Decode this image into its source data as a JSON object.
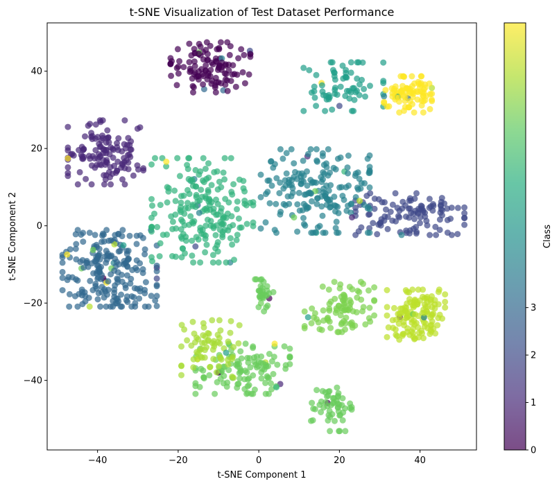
{
  "chart_data": {
    "type": "scatter",
    "title": "t-SNE Visualization of Test Dataset Performance",
    "xlabel": "t-SNE Component 1",
    "ylabel": "t-SNE Component 2",
    "xlim": [
      -52.5,
      54
    ],
    "ylim": [
      -58,
      52.5
    ],
    "xticks": [
      -40,
      -20,
      0,
      20,
      40
    ],
    "yticks": [
      -40,
      -20,
      0,
      20,
      40
    ],
    "grid": false,
    "point_alpha": 0.7,
    "colormap": "viridis",
    "colorbar": {
      "label": "Class",
      "range": [
        0,
        9
      ],
      "ticks": [
        0,
        1,
        2,
        3
      ]
    },
    "clusters": [
      {
        "class": 0,
        "center": [
          -12,
          41
        ],
        "spread": [
          5.5,
          3.6
        ],
        "count": 120
      },
      {
        "class": 1,
        "center": [
          -38,
          19
        ],
        "spread": [
          5.2,
          4.6
        ],
        "count": 130
      },
      {
        "class": 2,
        "center": [
          37.5,
          3
        ],
        "spread": [
          7.5,
          3.0
        ],
        "count": 115
      },
      {
        "class": 3,
        "center": [
          -37,
          -11
        ],
        "spread": [
          6.5,
          5.5
        ],
        "count": 220
      },
      {
        "class": 4,
        "center": [
          14,
          9
        ],
        "spread": [
          7.5,
          6.0
        ],
        "count": 190
      },
      {
        "class": 5,
        "center": [
          21,
          36
        ],
        "spread": [
          5.5,
          3.5
        ],
        "count": 70
      },
      {
        "class": 5.8,
        "center": [
          -14,
          4
        ],
        "spread": [
          7.0,
          7.5
        ],
        "count": 210
      },
      {
        "class": 6.9,
        "center": [
          1,
          -18
        ],
        "spread": [
          1.6,
          2.3
        ],
        "count": 30
      },
      {
        "class": 6.9,
        "center": [
          -4,
          -37
        ],
        "spread": [
          6.5,
          3.6
        ],
        "count": 120
      },
      {
        "class": 6.9,
        "center": [
          18,
          -47
        ],
        "spread": [
          2.8,
          3.4
        ],
        "count": 55
      },
      {
        "class": 7.2,
        "center": [
          20,
          -21
        ],
        "spread": [
          4.8,
          3.6
        ],
        "count": 90
      },
      {
        "class": 7.8,
        "center": [
          -12,
          -32
        ],
        "spread": [
          4.0,
          4.2
        ],
        "count": 70
      },
      {
        "class": 8.1,
        "center": [
          39,
          -23
        ],
        "spread": [
          4.0,
          3.6
        ],
        "count": 130
      },
      {
        "class": 9,
        "center": [
          37,
          34
        ],
        "spread": [
          3.3,
          2.6
        ],
        "count": 90
      }
    ]
  }
}
